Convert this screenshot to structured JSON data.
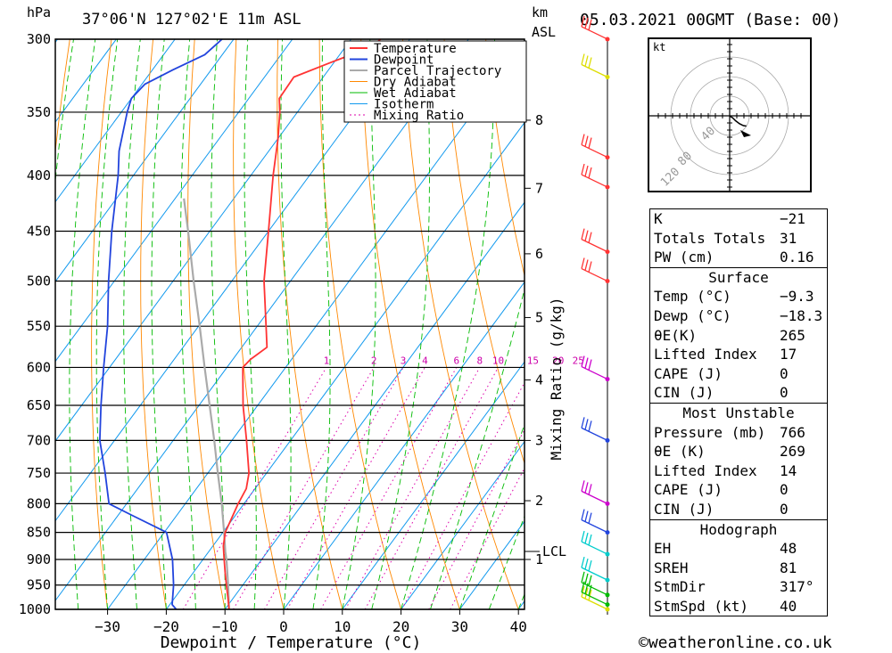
{
  "header": {
    "hpa_label": "hPa",
    "location": "37°06'N  127°02'E  11m  ASL",
    "km_label": "km",
    "asl_label": "ASL",
    "datetime": "05.03.2021  00GMT  (Base: 00)"
  },
  "footer": {
    "credit": "©weatheronline.co.uk"
  },
  "colors": {
    "temperature": "#ff3333",
    "dewpoint": "#2244dd",
    "parcel": "#aaaaaa",
    "dry_adiabat": "#ff8800",
    "wet_adiabat": "#00bb00",
    "isotherm": "#1199ee",
    "mixing_ratio": "#dd00aa"
  },
  "chart_data": {
    "type": "skew-t",
    "xlabel": "Dewpoint / Temperature (°C)",
    "ylabel_right": "Mixing Ratio (g/kg)",
    "pressure_levels": [
      300,
      350,
      400,
      450,
      500,
      550,
      600,
      650,
      700,
      750,
      800,
      850,
      900,
      950,
      1000
    ],
    "pressure_labels": [
      "300",
      "350",
      "400",
      "450",
      "500",
      "550",
      "600",
      "650",
      "700",
      "750",
      "800",
      "850",
      "900",
      "950",
      "1000"
    ],
    "temp_ticks": [
      -30,
      -20,
      -10,
      0,
      10,
      20,
      30,
      40
    ],
    "temp_tick_labels": [
      "−30",
      "−20",
      "−10",
      "0",
      "10",
      "20",
      "30",
      "40"
    ],
    "xlim": [
      -40,
      40
    ],
    "ylim_hpa": [
      1000,
      300
    ],
    "km_ticks": [
      {
        "km": 1,
        "label": "1"
      },
      {
        "km": 2,
        "label": "2"
      },
      {
        "km": 3,
        "label": "3"
      },
      {
        "km": 4,
        "label": "4"
      },
      {
        "km": 5,
        "label": "5"
      },
      {
        "km": 6,
        "label": "6"
      },
      {
        "km": 7,
        "label": "7"
      },
      {
        "km": 8,
        "label": "8"
      }
    ],
    "lcl_label": "LCL",
    "lcl_hpa": 885,
    "mixing_ratio_labels": [
      "1",
      "2",
      "3",
      "4",
      "6",
      "8",
      "10",
      "15",
      "20",
      "25"
    ],
    "legend": [
      "Temperature",
      "Dewpoint",
      "Parcel Trajectory",
      "Dry Adiabat",
      "Wet Adiabat",
      "Isotherm",
      "Mixing Ratio"
    ],
    "temperature": {
      "p": [
        1000,
        975,
        950,
        925,
        900,
        875,
        850,
        800,
        775,
        750,
        700,
        650,
        600,
        590,
        575,
        550,
        500,
        450,
        400,
        370,
        350,
        340,
        325,
        315,
        305,
        300
      ],
      "t": [
        -9.3,
        -11.0,
        -12.8,
        -14.6,
        -16.4,
        -18.2,
        -19.6,
        -21.0,
        -21.5,
        -23.0,
        -27.5,
        -32.5,
        -37.3,
        -37.0,
        -35.7,
        -38.5,
        -44.5,
        -50.0,
        -56.2,
        -60.0,
        -63.0,
        -64.8,
        -65.0,
        -60.5,
        -55.5,
        -55.0
      ]
    },
    "dewpoint": {
      "p": [
        1000,
        990,
        950,
        900,
        850,
        820,
        800,
        750,
        700,
        650,
        600,
        550,
        500,
        450,
        400,
        380,
        350,
        340,
        330,
        320,
        310,
        305,
        300
      ],
      "t": [
        -18.3,
        -19.6,
        -21.8,
        -25.2,
        -29.6,
        -37.6,
        -43.0,
        -47.5,
        -52.5,
        -56.7,
        -61.0,
        -65.5,
        -71.0,
        -76.7,
        -82.6,
        -85.5,
        -89.0,
        -90.0,
        -89.5,
        -86.5,
        -83.0,
        -82.5,
        -82.0
      ]
    },
    "parcel": {
      "p": [
        1000,
        950,
        900,
        885,
        850,
        800,
        750,
        700,
        650,
        600,
        550,
        500,
        450,
        420
      ],
      "t": [
        -9.3,
        -12.5,
        -16.0,
        -17.2,
        -19.8,
        -23.8,
        -28.3,
        -33.0,
        -38.2,
        -43.8,
        -49.8,
        -56.5,
        -63.7,
        -68.5
      ]
    },
    "wind_barbs": [
      {
        "p": 1000,
        "color": "#dddd00"
      },
      {
        "p": 990,
        "color": "#00bb00"
      },
      {
        "p": 970,
        "color": "#00bb00"
      },
      {
        "p": 940,
        "color": "#00cccc"
      },
      {
        "p": 890,
        "color": "#00cccc"
      },
      {
        "p": 850,
        "color": "#2244dd"
      },
      {
        "p": 800,
        "color": "#cc00cc"
      },
      {
        "p": 700,
        "color": "#2244dd"
      },
      {
        "p": 615,
        "color": "#cc00cc"
      },
      {
        "p": 500,
        "color": "#ff3333"
      },
      {
        "p": 470,
        "color": "#ff3333"
      },
      {
        "p": 410,
        "color": "#ff3333"
      },
      {
        "p": 385,
        "color": "#ff3333"
      },
      {
        "p": 325,
        "color": "#dddd00"
      },
      {
        "p": 300,
        "color": "#ff3333"
      }
    ],
    "hodograph": {
      "unit_label": "kt",
      "ring_labels": [
        "40",
        "80",
        "120"
      ],
      "u": [
        0.5,
        3.0,
        6.0,
        10.0,
        14.0,
        17.0
      ],
      "v": [
        -0.5,
        -2.0,
        -5.0,
        -8.0,
        -10.0,
        -10.5
      ]
    }
  },
  "indices": {
    "top": [
      {
        "label": "K",
        "value": "−21"
      },
      {
        "label": "Totals Totals",
        "value": "31"
      },
      {
        "label": "PW (cm)",
        "value": "0.16"
      }
    ],
    "surface": {
      "title": "Surface",
      "rows": [
        {
          "label": "Temp (°C)",
          "value": "−9.3"
        },
        {
          "label": "Dewp (°C)",
          "value": "−18.3"
        },
        {
          "label": "θE(K)",
          "value": "265"
        },
        {
          "label": "Lifted Index",
          "value": "17"
        },
        {
          "label": "CAPE (J)",
          "value": "0"
        },
        {
          "label": "CIN (J)",
          "value": "0"
        }
      ]
    },
    "most_unstable": {
      "title": "Most Unstable",
      "rows": [
        {
          "label": "Pressure (mb)",
          "value": "766"
        },
        {
          "label": "θE (K)",
          "value": "269"
        },
        {
          "label": "Lifted Index",
          "value": "14"
        },
        {
          "label": "CAPE (J)",
          "value": "0"
        },
        {
          "label": "CIN (J)",
          "value": "0"
        }
      ]
    },
    "hodograph": {
      "title": "Hodograph",
      "rows": [
        {
          "label": "EH",
          "value": "48"
        },
        {
          "label": "SREH",
          "value": "81"
        },
        {
          "label": "StmDir",
          "value": "317°"
        },
        {
          "label": "StmSpd (kt)",
          "value": "40"
        }
      ]
    }
  }
}
